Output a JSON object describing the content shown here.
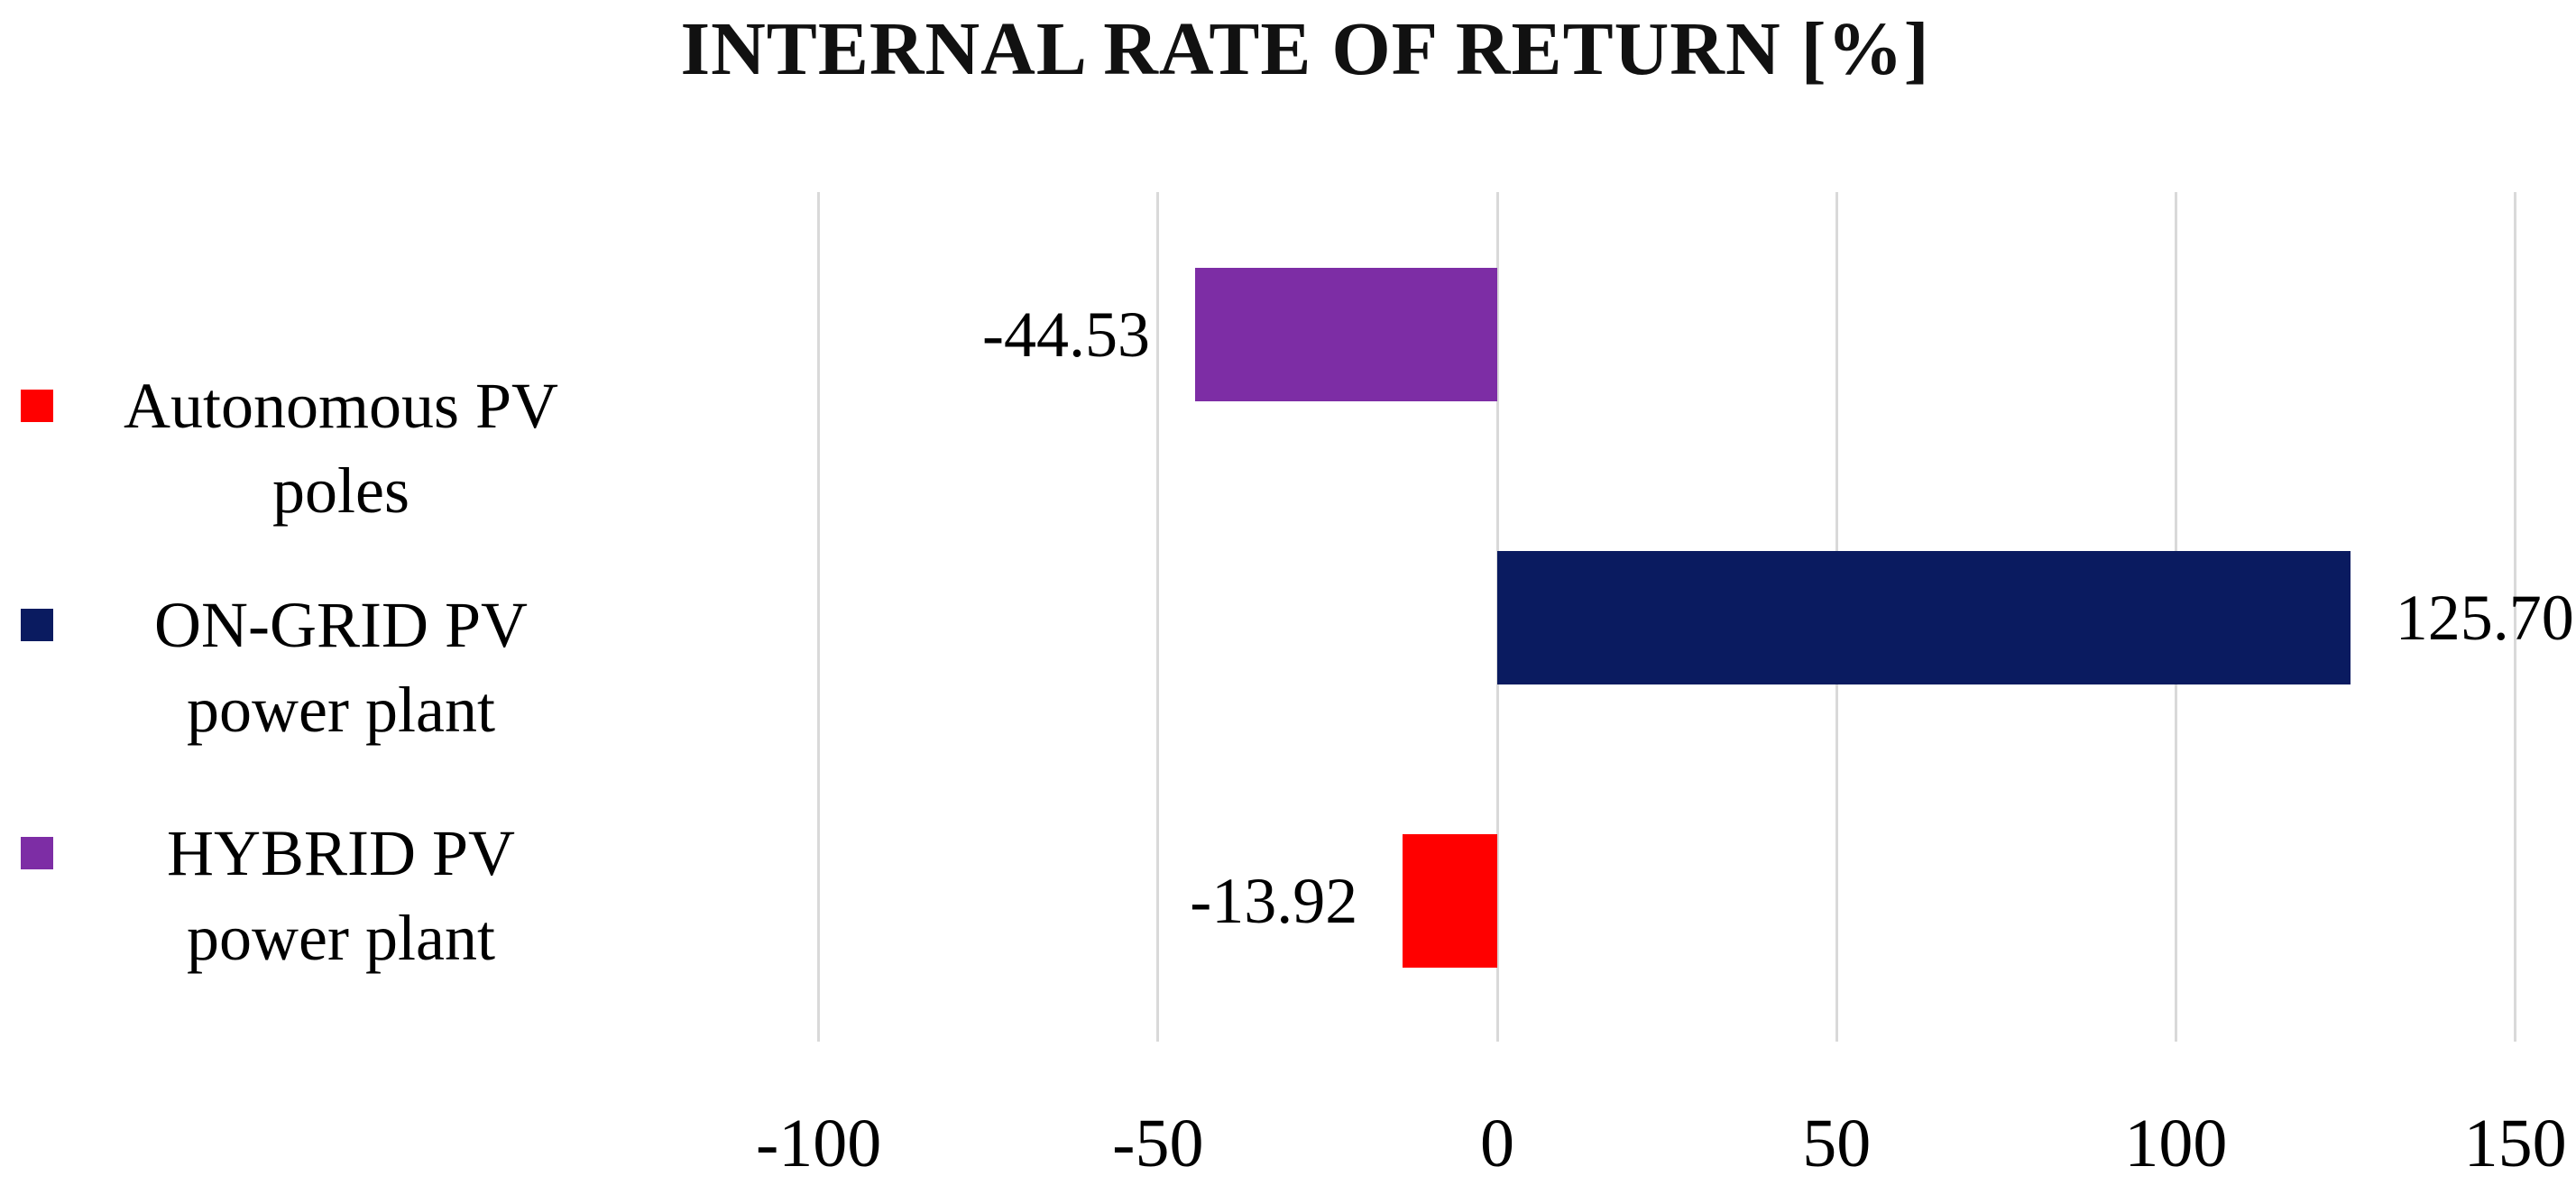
{
  "chart_data": {
    "type": "bar",
    "orientation": "horizontal",
    "title": "INTERNAL RATE OF RETURN [%]",
    "unit": "%",
    "bars": [
      {
        "series": "HYBRID PV power plant",
        "value": -44.53,
        "label": "-44.53",
        "color": "#7d2da5"
      },
      {
        "series": "ON-GRID PV power plant",
        "value": 125.7,
        "label": "125.70",
        "color": "#0a1b60"
      },
      {
        "series": "Autonomous PV poles",
        "value": -13.92,
        "label": "-13.92",
        "color": "#ff0000"
      }
    ],
    "x_axis": {
      "min": -100,
      "max": 150,
      "ticks": [
        -100,
        -50,
        0,
        50,
        100,
        150
      ],
      "tick_labels": [
        "-100",
        "-50",
        "0",
        "50",
        "100",
        "150"
      ]
    },
    "grid": "vertical-gridlines-only",
    "gridline_color": "#d9d9d9",
    "legend_position": "left",
    "legend": [
      {
        "line1": "Autonomous PV",
        "line2": "poles",
        "name": "Autonomous PV poles",
        "color": "#ff0000"
      },
      {
        "line1": "ON-GRID PV",
        "line2": "power plant",
        "name": "ON-GRID PV power plant",
        "color": "#0a1b60"
      },
      {
        "line1": "HYBRID PV",
        "line2": "power plant",
        "name": "HYBRID PV power plant",
        "color": "#7d2da5"
      }
    ]
  }
}
